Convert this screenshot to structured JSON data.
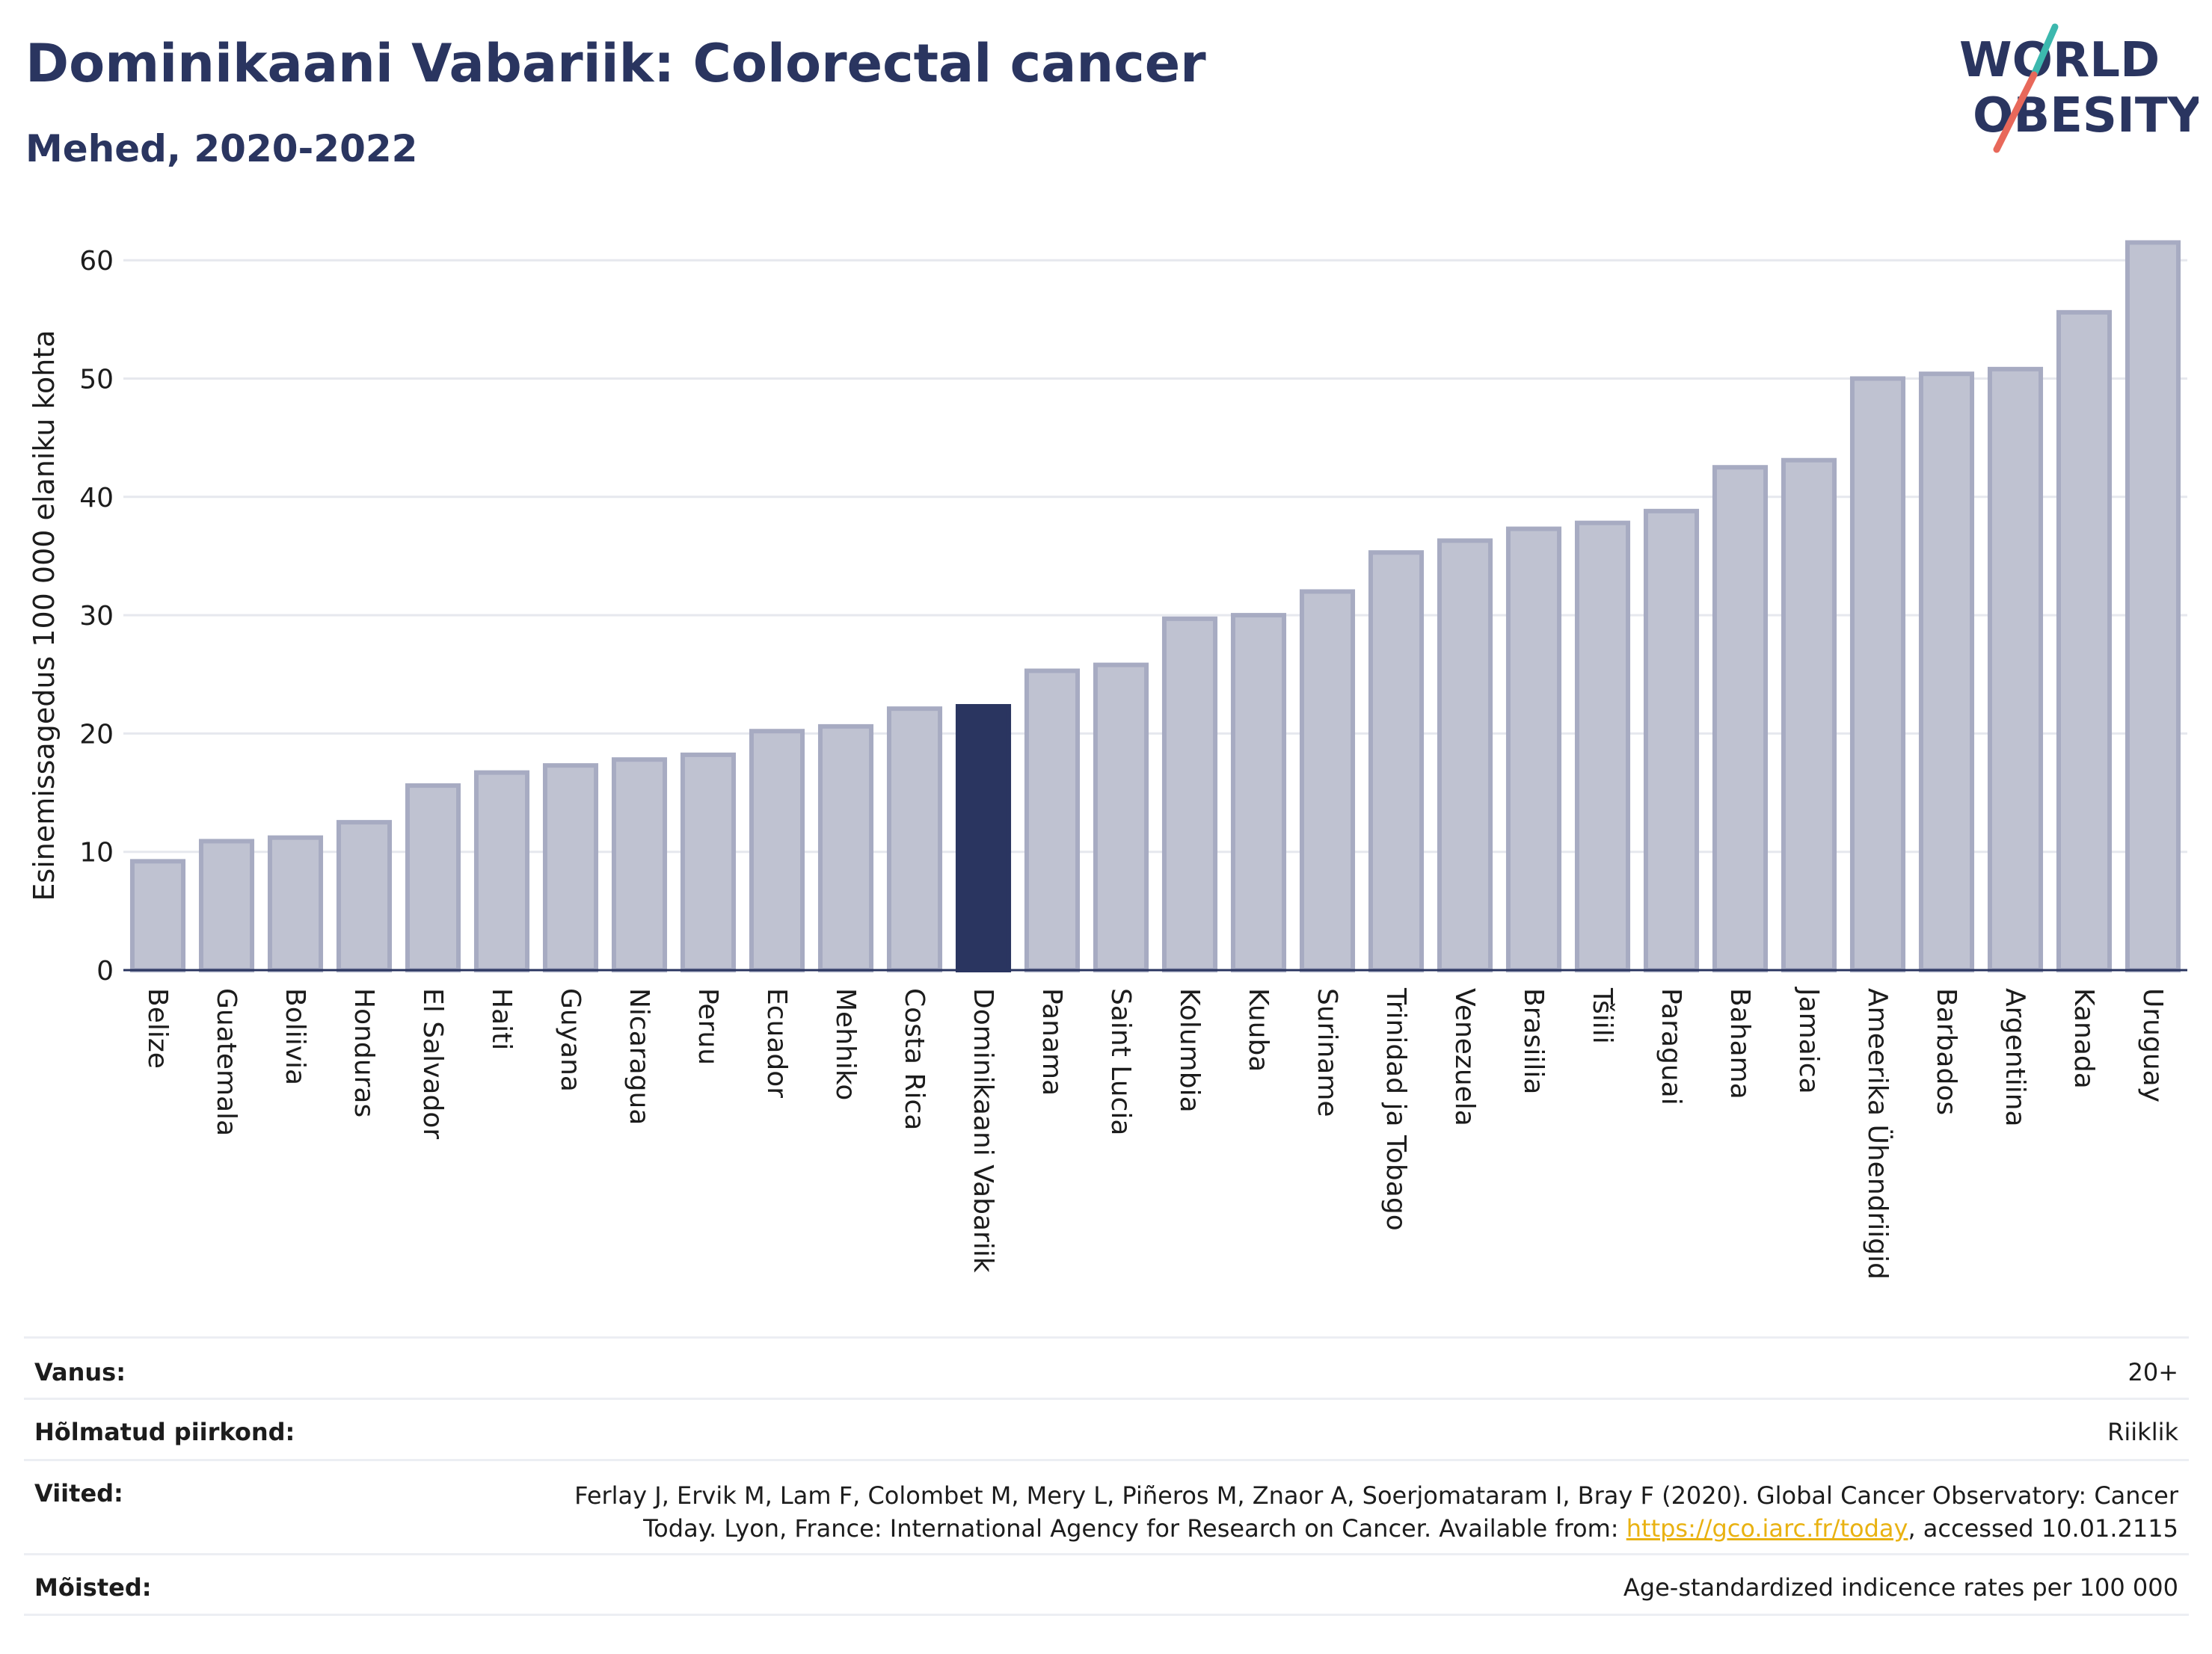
{
  "header": {
    "title": "Dominikaani Vabariik: Colorectal cancer",
    "subtitle": "Mehed, 2020-2022"
  },
  "logo": {
    "line1": "WORLD",
    "line2": "OBESITY"
  },
  "colors": {
    "highlight": "#2a3560",
    "bar_fill": "#bfc2d1",
    "bar_stroke": "#a7abc2",
    "text": "#2a3560",
    "grid": "#e6e8ee",
    "link": "#e9b212"
  },
  "chart_data": {
    "type": "bar",
    "ylabel": "Esinemissagedus 100 000 elaniku kohta",
    "ylim": [
      0,
      65
    ],
    "yticks": [
      0,
      10,
      20,
      30,
      40,
      50,
      60
    ],
    "grid": true,
    "highlight": "Dominikaani Vabariik",
    "categories": [
      "Belize",
      "Guatemala",
      "Boliivia",
      "Honduras",
      "El Salvador",
      "Haiti",
      "Guyana",
      "Nicaragua",
      "Peruu",
      "Ecuador",
      "Mehhiko",
      "Costa Rica",
      "Dominikaani Vabariik",
      "Panama",
      "Saint Lucia",
      "Kolumbia",
      "Kuuba",
      "Suriname",
      "Trinidad ja Tobago",
      "Venezuela",
      "Brasiilia",
      "Tšiili",
      "Paraguai",
      "Bahama",
      "Jamaica",
      "Ameerika Ühendriigid",
      "Barbados",
      "Argentiina",
      "Kanada",
      "Uruguay"
    ],
    "values": [
      9.2,
      10.9,
      11.2,
      12.5,
      15.6,
      16.7,
      17.3,
      17.8,
      18.2,
      20.2,
      20.6,
      22.1,
      22.3,
      25.3,
      25.8,
      29.7,
      30.0,
      32.0,
      35.3,
      36.3,
      37.3,
      37.8,
      38.8,
      42.5,
      43.1,
      50.0,
      50.4,
      50.8,
      55.6,
      61.5
    ]
  },
  "meta": {
    "age_label": "Vanus:",
    "age_value": "20+",
    "area_label": "Hõlmatud piirkond:",
    "area_value": "Riiklik",
    "refs_label": "Viited:",
    "refs_line1": "Ferlay J, Ervik M, Lam F, Colombet M, Mery L, Piñeros M, Znaor A, Soerjomataram I, Bray F (2020). Global Cancer Observatory: Cancer",
    "refs_line2_pre": "Today. Lyon, France: International Agency for Research on Cancer. Available from: ",
    "refs_link": "https://gco.iarc.fr/today",
    "refs_line2_post": ", accessed 10.01.2115",
    "defs_label": "Mõisted:",
    "defs_value": "Age-standardized indicence rates per 100 000"
  }
}
